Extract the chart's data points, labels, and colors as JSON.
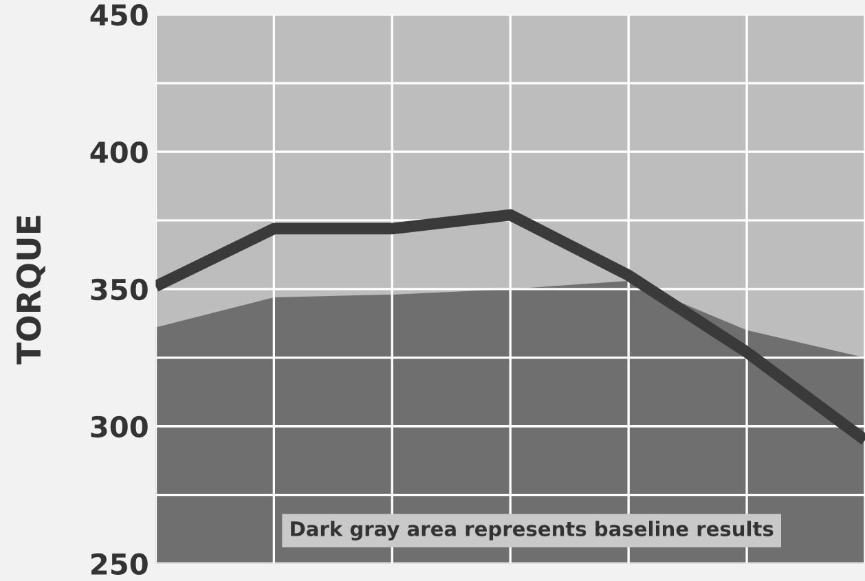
{
  "chart_data": {
    "type": "line",
    "ylabel": "TORQUE",
    "categories": [
      null,
      null,
      null,
      null,
      null,
      null,
      null
    ],
    "series": [
      {
        "type": "area",
        "color": "#6f6f6f",
        "values": [
          336,
          347,
          348,
          350,
          353,
          335,
          325
        ]
      },
      {
        "color": "#3a3a3a",
        "values": [
          351,
          372,
          372,
          377,
          355,
          327,
          295
        ]
      }
    ],
    "ylim": [
      250,
      450
    ],
    "yticks": [
      250,
      {
        "value": 275,
        "label": null
      },
      300,
      {
        "value": 325,
        "label": null
      },
      350,
      {
        "value": 375,
        "label": null
      },
      400,
      {
        "value": 425,
        "label": null
      },
      450
    ],
    "grid": true,
    "legend": false,
    "marker": "none",
    "line_style": "solid",
    "annotations": [
      "Dark gray area represents baseline results"
    ]
  }
}
